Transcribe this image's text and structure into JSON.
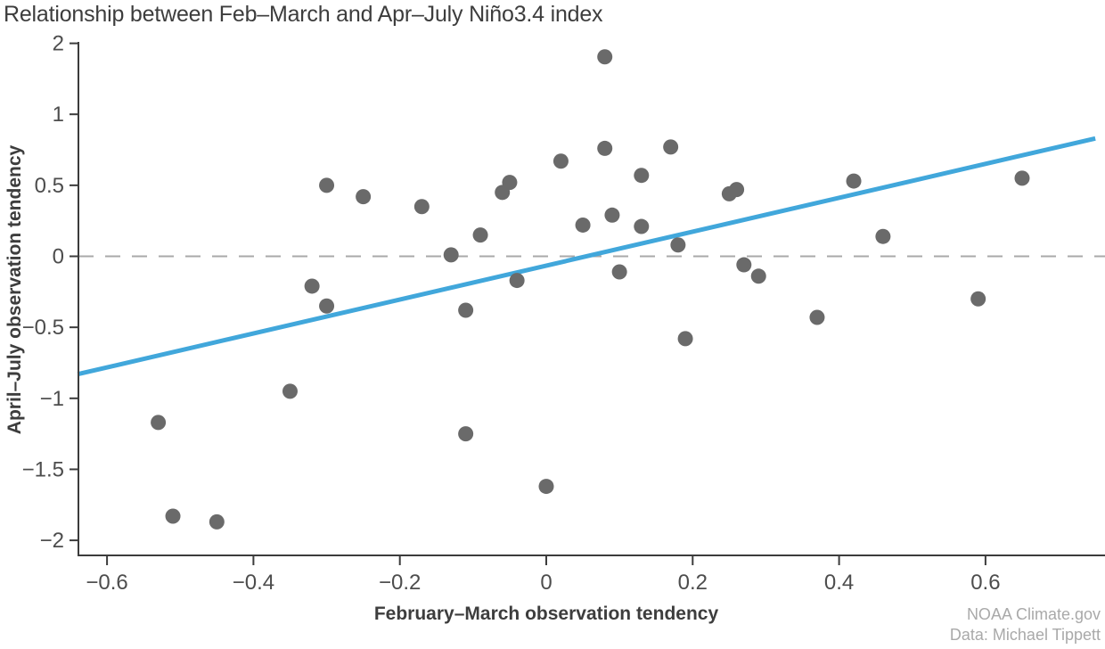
{
  "title": "Relationship between Feb–March and Apr–July Niño3.4 index",
  "credits": {
    "line1": "NOAA Climate.gov",
    "line2": "Data: Michael Tippett"
  },
  "chart_data": {
    "type": "scatter",
    "title": "Relationship between Feb–March and Apr–July Niño3.4 index",
    "xlabel": "February–March observation tendency",
    "ylabel": "April–July observation tendency",
    "xlim": [
      -0.64,
      0.765
    ],
    "ylim": [
      -2.15,
      2
    ],
    "grid": false,
    "legend": false,
    "zero_reference_line": 0,
    "x_ticks": {
      "values": [
        -0.6,
        -0.4,
        -0.2,
        0,
        0.2,
        0.4,
        0.6
      ],
      "labels": [
        "−0.6",
        "−0.4",
        "−0.2",
        "0",
        "0.2",
        "0.4",
        "0.6"
      ]
    },
    "y_ticks": {
      "values": [
        2,
        1,
        0.5,
        0,
        -0.5,
        -1,
        -1.5,
        -2
      ],
      "labels": [
        "2",
        "1",
        "0.5",
        "0",
        "−0.5",
        "−1",
        "−1.5",
        "−2"
      ]
    },
    "axis_note": "y ticks are evenly spaced in pixels; top tick labeled 2 sits one tick interval above 1",
    "points": [
      [
        -0.53,
        -1.17
      ],
      [
        -0.51,
        -1.83
      ],
      [
        -0.45,
        -1.87
      ],
      [
        -0.35,
        -0.95
      ],
      [
        -0.32,
        -0.21
      ],
      [
        -0.3,
        -0.35
      ],
      [
        -0.3,
        0.5
      ],
      [
        -0.25,
        0.42
      ],
      [
        -0.17,
        0.35
      ],
      [
        -0.13,
        0.01
      ],
      [
        -0.11,
        -0.38
      ],
      [
        -0.11,
        -1.25
      ],
      [
        -0.09,
        0.15
      ],
      [
        -0.06,
        0.45
      ],
      [
        -0.05,
        0.52
      ],
      [
        -0.04,
        -0.17
      ],
      [
        0.0,
        -1.62
      ],
      [
        0.02,
        0.67
      ],
      [
        0.05,
        0.22
      ],
      [
        0.08,
        1.81
      ],
      [
        0.08,
        0.76
      ],
      [
        0.09,
        0.29
      ],
      [
        0.1,
        -0.11
      ],
      [
        0.13,
        0.57
      ],
      [
        0.13,
        0.21
      ],
      [
        0.17,
        0.77
      ],
      [
        0.18,
        0.08
      ],
      [
        0.19,
        -0.58
      ],
      [
        0.25,
        0.44
      ],
      [
        0.26,
        0.47
      ],
      [
        0.27,
        -0.06
      ],
      [
        0.29,
        -0.14
      ],
      [
        0.37,
        -0.43
      ],
      [
        0.42,
        0.53
      ],
      [
        0.46,
        0.14
      ],
      [
        0.59,
        -0.3
      ],
      [
        0.65,
        0.55
      ]
    ],
    "trend_line": {
      "x1": -0.64,
      "y1": -0.83,
      "x2": 0.75,
      "y2": 0.83
    },
    "colors": {
      "point": "#6a6a6a",
      "trend": "#41a7db",
      "zero_line": "#a9a9a9",
      "axis": "#3c3c3c",
      "tick_label": "#4d4d4d"
    }
  }
}
